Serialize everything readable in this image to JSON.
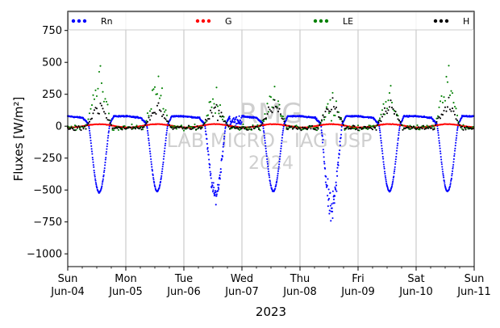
{
  "chart_data": {
    "type": "scatter",
    "title": "",
    "xlabel": "2023",
    "ylabel": "Fluxes [W/m²]",
    "ylim": [
      -1100,
      900
    ],
    "yticks": [
      750,
      500,
      250,
      0,
      -250,
      -500,
      -750,
      -1000
    ],
    "xlim": [
      "2023-06-04 00:00",
      "2023-06-11 00:00"
    ],
    "xtick_labels": [
      {
        "day": "Sun",
        "date": "Jun-04"
      },
      {
        "day": "Mon",
        "date": "Jun-05"
      },
      {
        "day": "Tue",
        "date": "Jun-06"
      },
      {
        "day": "Wed",
        "date": "Jun-07"
      },
      {
        "day": "Thu",
        "date": "Jun-08"
      },
      {
        "day": "Fri",
        "date": "Jun-09"
      },
      {
        "day": "Sat",
        "date": "Jun-10"
      },
      {
        "day": "Sun",
        "date": "Jun-11"
      }
    ],
    "grid": "vertical-major",
    "legend_position": "top",
    "watermark": [
      "RMG",
      "LAB MICRO - IAG USP",
      "2024"
    ],
    "series": [
      {
        "name": "Rn",
        "color": "#0000ff",
        "daily_profile": {
          "night_value": 78,
          "daily_minimum": [
            -540,
            -530,
            -560,
            -530,
            -680,
            -530,
            -530
          ],
          "minimum_hour": 13
        }
      },
      {
        "name": "G",
        "color": "#ff0000",
        "daily_profile": {
          "night_value": 15,
          "midday_value": -10
        }
      },
      {
        "name": "LE",
        "color": "#008000",
        "daily_profile": {
          "night_value": -10,
          "daily_maximum": [
            540,
            420,
            320,
            330,
            270,
            330,
            545
          ],
          "maximum_hour": 13
        }
      },
      {
        "name": "H",
        "color": "#000000",
        "daily_profile": {
          "night_value": -15,
          "daily_maximum": [
            200,
            190,
            180,
            230,
            260,
            210,
            230
          ],
          "maximum_hour": 13
        }
      }
    ]
  }
}
